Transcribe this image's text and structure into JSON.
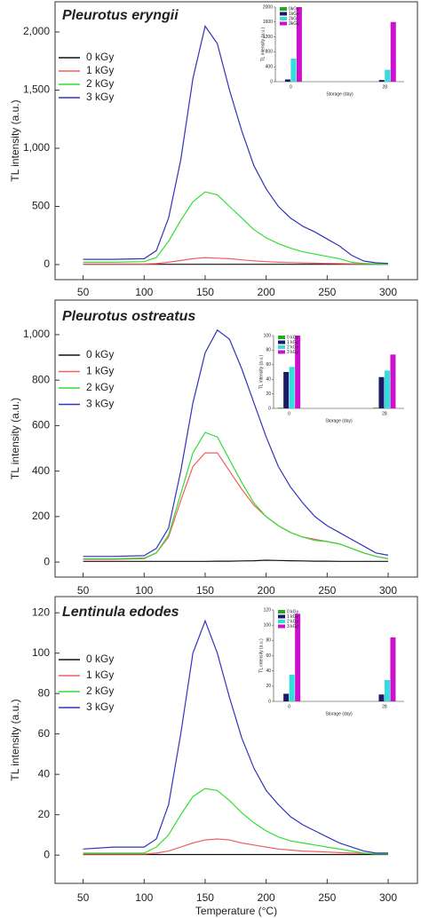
{
  "chart_data": [
    {
      "type": "line",
      "title": "Pleurotus eryngii",
      "y_label": "TL intensity (a.u.)",
      "x": [
        50,
        75,
        100,
        110,
        120,
        130,
        140,
        150,
        160,
        170,
        180,
        190,
        200,
        210,
        220,
        230,
        240,
        250,
        260,
        270,
        280,
        290,
        300
      ],
      "xlim": [
        27,
        324
      ],
      "xticks": [
        50,
        100,
        150,
        200,
        250,
        300
      ],
      "ylim": [
        -130,
        2260
      ],
      "yticks": [
        0,
        500,
        {
          "value": 1000,
          "label": "1,000"
        },
        {
          "value": 1500,
          "label": "1,500"
        },
        {
          "value": 2000,
          "label": "2,000"
        }
      ],
      "legend": "upper left",
      "series": [
        {
          "name": "0 kGy",
          "color": "#111111",
          "values": [
            2,
            2,
            2,
            2,
            2,
            2,
            2,
            2,
            2,
            2,
            2,
            2,
            2,
            2,
            2,
            2,
            2,
            2,
            2,
            2,
            2,
            2,
            2
          ]
        },
        {
          "name": "1 kGy",
          "color": "#f06060",
          "values": [
            5,
            5,
            5,
            8,
            20,
            35,
            50,
            60,
            55,
            50,
            40,
            32,
            25,
            20,
            17,
            14,
            12,
            10,
            8,
            6,
            5,
            5,
            5
          ]
        },
        {
          "name": "2 kGy",
          "color": "#33dd33",
          "values": [
            20,
            20,
            25,
            60,
            200,
            380,
            540,
            625,
            600,
            500,
            400,
            300,
            230,
            180,
            140,
            110,
            90,
            70,
            50,
            20,
            10,
            5,
            3
          ]
        },
        {
          "name": "3 kGy",
          "color": "#3333bb",
          "values": [
            45,
            45,
            50,
            120,
            400,
            900,
            1600,
            2050,
            1900,
            1500,
            1150,
            850,
            650,
            500,
            400,
            330,
            280,
            220,
            160,
            80,
            30,
            15,
            10
          ]
        }
      ],
      "inset": {
        "type": "bar",
        "x_label": "Storage (day)",
        "y_label": "TL intensity (a.u.)",
        "categories": [
          "0",
          "28"
        ],
        "ylim": [
          0,
          2000
        ],
        "yticks": [
          0,
          400,
          800,
          1200,
          1600,
          2000
        ],
        "series": [
          {
            "name": "0kGy",
            "color": "#22aa22",
            "values": [
              2,
              2
            ]
          },
          {
            "name": "1kGy",
            "color": "#1a1a66",
            "values": [
              60,
              45
            ]
          },
          {
            "name": "2kGy",
            "color": "#33dddd",
            "values": [
              620,
              320
            ]
          },
          {
            "name": "3kGy",
            "color": "#cc11cc",
            "values": [
              2000,
              1600
            ]
          }
        ]
      }
    },
    {
      "type": "line",
      "title": "Pleurotus  ostreatus",
      "y_label": "TL intensity (a.u.)",
      "x": [
        50,
        75,
        100,
        110,
        120,
        130,
        140,
        150,
        160,
        170,
        180,
        190,
        200,
        210,
        220,
        230,
        240,
        250,
        260,
        270,
        280,
        290,
        300
      ],
      "xlim": [
        27,
        324
      ],
      "xticks": [
        50,
        100,
        150,
        200,
        250,
        300
      ],
      "ylim": [
        -66,
        1152
      ],
      "yticks": [
        0,
        200,
        400,
        600,
        800,
        {
          "value": 1000,
          "label": "1,000"
        }
      ],
      "legend": "upper left",
      "series": [
        {
          "name": "0 kGy",
          "color": "#111111",
          "values": [
            3,
            3,
            3,
            3,
            3,
            3,
            3,
            3,
            4,
            4,
            5,
            6,
            8,
            7,
            6,
            5,
            4,
            4,
            3,
            3,
            3,
            3,
            3
          ]
        },
        {
          "name": "1 kGy",
          "color": "#f06060",
          "values": [
            12,
            12,
            15,
            40,
            110,
            270,
            420,
            480,
            480,
            400,
            320,
            250,
            200,
            160,
            130,
            110,
            100,
            90,
            80,
            60,
            40,
            25,
            15
          ]
        },
        {
          "name": "2 kGy",
          "color": "#33dd33",
          "values": [
            15,
            15,
            18,
            40,
            120,
            300,
            480,
            570,
            550,
            450,
            350,
            260,
            200,
            160,
            130,
            110,
            95,
            90,
            80,
            60,
            40,
            25,
            15
          ]
        },
        {
          "name": "3 kGy",
          "color": "#3333bb",
          "values": [
            25,
            25,
            28,
            60,
            150,
            400,
            700,
            920,
            1020,
            980,
            850,
            700,
            550,
            420,
            330,
            260,
            200,
            160,
            130,
            100,
            70,
            40,
            30
          ]
        }
      ],
      "inset": {
        "type": "bar",
        "x_label": "Storage (day)",
        "y_label": "TL intensity (a.u.)",
        "categories": [
          "0",
          "28"
        ],
        "ylim": [
          0,
          100
        ],
        "yticks": [
          0,
          20,
          40,
          60,
          80,
          100
        ],
        "series": [
          {
            "name": "0 kGy",
            "color": "#22aa22",
            "values": [
              1,
              1
            ]
          },
          {
            "name": "1 kGy",
            "color": "#1a1a66",
            "values": [
              50,
              43
            ]
          },
          {
            "name": "2 kGy",
            "color": "#33dddd",
            "values": [
              57,
              52
            ]
          },
          {
            "name": "3 kGy",
            "color": "#cc11cc",
            "values": [
              100,
              74
            ]
          }
        ]
      }
    },
    {
      "type": "line",
      "title": "Lentinula edodes",
      "y_label": "TL intensity (a.u.)",
      "x_label": "Temperature (°C)",
      "x": [
        50,
        75,
        100,
        110,
        120,
        130,
        140,
        150,
        160,
        170,
        180,
        190,
        200,
        210,
        220,
        230,
        240,
        250,
        260,
        270,
        280,
        290,
        300
      ],
      "xlim": [
        27,
        324
      ],
      "xticks": [
        50,
        100,
        150,
        200,
        250,
        300
      ],
      "ylim": [
        -14,
        128
      ],
      "yticks": [
        0,
        20,
        40,
        60,
        80,
        100,
        120
      ],
      "legend": "upper left",
      "series": [
        {
          "name": "0 kGy",
          "color": "#111111",
          "values": [
            0.3,
            0.3,
            0.3,
            0.3,
            0.3,
            0.3,
            0.3,
            0.3,
            0.3,
            0.3,
            0.3,
            0.3,
            0.3,
            0.3,
            0.3,
            0.3,
            0.3,
            0.3,
            0.3,
            0.3,
            0.3,
            0.3,
            0.3
          ]
        },
        {
          "name": "1 kGy",
          "color": "#f06060",
          "values": [
            0.5,
            0.5,
            0.5,
            1,
            2,
            4,
            6,
            7.5,
            8,
            7.5,
            6,
            5,
            4,
            3,
            2.5,
            2,
            1.8,
            1.5,
            1.2,
            1,
            0.8,
            0.6,
            0.5
          ]
        },
        {
          "name": "2 kGy",
          "color": "#33dd33",
          "values": [
            1,
            1,
            1,
            4,
            10,
            20,
            29,
            33,
            32,
            27,
            21,
            16,
            12,
            9,
            7,
            6,
            5,
            4,
            3,
            2,
            1,
            0.5,
            0.5
          ]
        },
        {
          "name": "3 kGy",
          "color": "#3333bb",
          "values": [
            3,
            4,
            4,
            8,
            25,
            60,
            100,
            116,
            100,
            78,
            58,
            43,
            32,
            25,
            19,
            15,
            12,
            9,
            6,
            4,
            2,
            1,
            1
          ]
        }
      ],
      "inset": {
        "type": "bar",
        "x_label": "Storage (day)",
        "y_label": "TL intensity (a.u.)",
        "categories": [
          "0",
          "28"
        ],
        "ylim": [
          0,
          120
        ],
        "yticks": [
          0,
          20,
          40,
          60,
          80,
          100,
          120
        ],
        "series": [
          {
            "name": "0 kGy",
            "color": "#22aa22",
            "values": [
              0.03,
              0.02
            ]
          },
          {
            "name": "1 kGy",
            "color": "#1a1a66",
            "values": [
              10,
              9
            ]
          },
          {
            "name": "2 kGy",
            "color": "#33dddd",
            "values": [
              35,
              28
            ]
          },
          {
            "name": "3 kGy",
            "color": "#cc11cc",
            "values": [
              115,
              84
            ]
          }
        ]
      }
    }
  ]
}
